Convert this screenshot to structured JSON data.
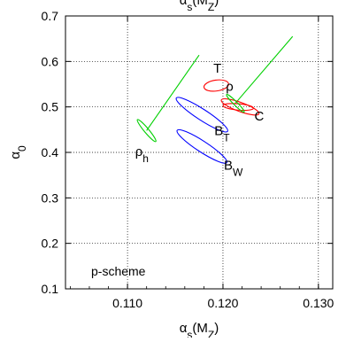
{
  "chart_data": {
    "type": "scatter",
    "title": "α<sub>s</sub>(M<sub>Z</sub>)",
    "xlabel": "α<sub>s</sub>(M<sub>Z</sub>)",
    "ylabel": "α<sub>0</sub>",
    "xlim": [
      0.1035,
      0.1315
    ],
    "ylim": [
      0.1,
      0.7
    ],
    "xticks": [
      0.11,
      0.12,
      0.13
    ],
    "xtick_labels": [
      "0.110",
      "0.120",
      "0.130"
    ],
    "yticks": [
      0.1,
      0.2,
      0.3,
      0.4,
      0.5,
      0.6,
      0.7
    ],
    "ytick_labels": [
      "0.1",
      "0.2",
      "0.3",
      "0.4",
      "0.5",
      "0.6",
      "0.7"
    ],
    "grid": true,
    "grid_style": "dotted",
    "annotation_text": "p-scheme",
    "ellipses": [
      {
        "label": "T",
        "color": "#ff0000",
        "cx": 0.1193,
        "cy": 0.547,
        "rx": 0.0013,
        "ry": 0.012,
        "angle_deg": -8
      },
      {
        "label": "ρ",
        "label_x": 0.1202,
        "label_y": 0.532,
        "color": "#ff0000",
        "cx": 0.1218,
        "cy": 0.5,
        "rx": 0.0021,
        "ry": 0.01,
        "angle_deg": 20
      },
      {
        "label": "C",
        "color": "#ff0000",
        "cx": 0.1216,
        "cy": 0.5,
        "rx": 0.0016,
        "ry": 0.007,
        "angle_deg": 5
      },
      {
        "label": "B_T",
        "color": "#0000ff",
        "cx": 0.1178,
        "cy": 0.483,
        "rx": 0.0032,
        "ry": 0.012,
        "angle_deg": 33
      },
      {
        "label": "B_W",
        "color": "#0000ff",
        "cx": 0.1178,
        "cy": 0.413,
        "rx": 0.0031,
        "ry": 0.012,
        "angle_deg": 33
      },
      {
        "label": "ρ_h",
        "color": "#00d000",
        "cx": 0.112,
        "cy": 0.448,
        "rx": 0.0015,
        "ry": 0.005,
        "angle_deg": 50
      },
      {
        "label": "",
        "color": "#00d000",
        "cx": 0.1213,
        "cy": 0.508,
        "rx": 0.0013,
        "ry": 0.004,
        "angle_deg": 45
      }
    ],
    "lines": [
      {
        "color": "#00d000",
        "points": [
          [
            0.1175,
            0.614
          ],
          [
            0.112,
            0.448
          ]
        ]
      },
      {
        "color": "#00d000",
        "points": [
          [
            0.1273,
            0.655
          ],
          [
            0.1213,
            0.508
          ]
        ]
      }
    ],
    "labels": [
      {
        "text": "T",
        "x": 0.119,
        "y": 0.575
      },
      {
        "text": "ρ",
        "x": 0.1203,
        "y": 0.535
      },
      {
        "text": "C",
        "x": 0.1233,
        "y": 0.47
      },
      {
        "text": "B",
        "sub": "T",
        "x": 0.1191,
        "y": 0.438
      },
      {
        "text": "B",
        "sub": "W",
        "x": 0.1201,
        "y": 0.362
      },
      {
        "text": "ρ",
        "sub": "h",
        "x": 0.1108,
        "y": 0.392
      }
    ]
  }
}
